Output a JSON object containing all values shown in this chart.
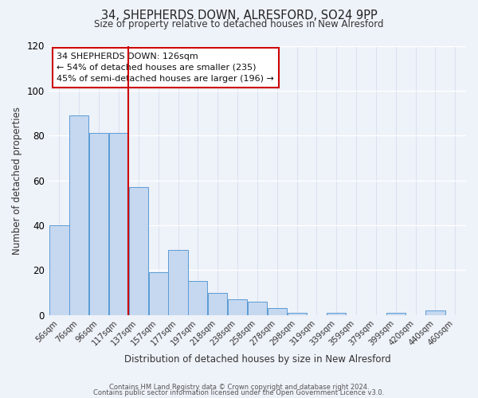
{
  "title": "34, SHEPHERDS DOWN, ALRESFORD, SO24 9PP",
  "subtitle": "Size of property relative to detached houses in New Alresford",
  "xlabel": "Distribution of detached houses by size in New Alresford",
  "ylabel": "Number of detached properties",
  "bar_labels": [
    "56sqm",
    "76sqm",
    "96sqm",
    "117sqm",
    "137sqm",
    "157sqm",
    "177sqm",
    "197sqm",
    "218sqm",
    "238sqm",
    "258sqm",
    "278sqm",
    "298sqm",
    "319sqm",
    "339sqm",
    "359sqm",
    "379sqm",
    "399sqm",
    "420sqm",
    "440sqm",
    "460sqm"
  ],
  "bar_values": [
    40,
    89,
    81,
    81,
    57,
    19,
    29,
    15,
    10,
    7,
    6,
    3,
    1,
    0,
    1,
    0,
    0,
    1,
    0,
    2,
    0
  ],
  "bar_color": "#c5d8f0",
  "bar_edge_color": "#5b9bd5",
  "ylim": [
    0,
    120
  ],
  "yticks": [
    0,
    20,
    40,
    60,
    80,
    100,
    120
  ],
  "vline_color": "#cc0000",
  "annotation_line1": "34 SHEPHERDS DOWN: 126sqm",
  "annotation_line2": "← 54% of detached houses are smaller (235)",
  "annotation_line3": "45% of semi-detached houses are larger (196) →",
  "box_edge_color": "#cc0000",
  "footer_line1": "Contains HM Land Registry data © Crown copyright and database right 2024.",
  "footer_line2": "Contains public sector information licensed under the Open Government Licence v3.0.",
  "background_color": "#eef2f9",
  "grid_color": "#d8e2f0"
}
